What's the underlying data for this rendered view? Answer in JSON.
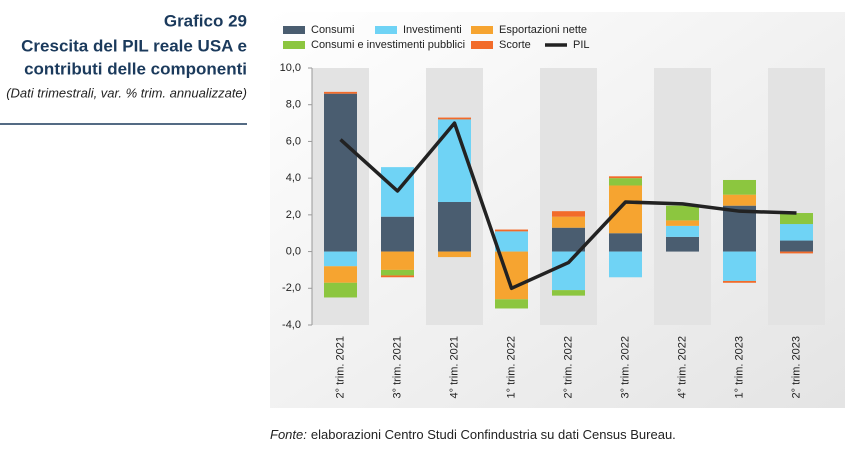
{
  "chart_data": {
    "type": "bar",
    "stacked": true,
    "title_label": "Grafico 29",
    "title": [
      "Crescita del PIL reale USA e",
      "contributi delle componenti"
    ],
    "subtitle": "(Dati trimestrali, var. % trim. annualizzate)",
    "source": {
      "label": "Fonte:",
      "text": "elaborazioni Centro Studi Confindustria su dati Census Bureau."
    },
    "categories": [
      "2° trim. 2021",
      "3° trim. 2021",
      "4° trim. 2021",
      "1° trim. 2022",
      "2° trim. 2022",
      "3° trim. 2022",
      "4° trim. 2022",
      "1° trim. 2023",
      "2° trim. 2023"
    ],
    "series": [
      {
        "name": "Consumi",
        "color": "#4a5d70",
        "values": [
          8.6,
          1.9,
          2.7,
          0,
          1.3,
          1.0,
          0.8,
          2.5,
          0.6
        ]
      },
      {
        "name": "Investimenti",
        "color": "#6fd3f5",
        "values": [
          -0.8,
          2.7,
          4.5,
          1.1,
          -2.1,
          -1.4,
          0.6,
          -1.6,
          0.9
        ]
      },
      {
        "name": "Esportazioni nette",
        "color": "#f6a430",
        "values": [
          -0.9,
          -1.0,
          -0.3,
          -2.6,
          0.6,
          2.6,
          0.3,
          0.6,
          0
        ]
      },
      {
        "name": "Consumi e investimenti pubblici",
        "color": "#8cc63f",
        "values": [
          -0.8,
          -0.3,
          0,
          -0.5,
          -0.3,
          0.4,
          0.8,
          0.8,
          0.6
        ]
      },
      {
        "name": "Scorte",
        "color": "#f26b2a",
        "values": [
          0.1,
          -0.1,
          0.1,
          0.1,
          0.3,
          0.1,
          0,
          -0.1,
          -0.1
        ]
      },
      {
        "name": "PIL",
        "color": "#222222",
        "type": "line",
        "values": [
          6.1,
          3.3,
          7.0,
          -2.0,
          -0.6,
          2.7,
          2.6,
          2.2,
          2.1
        ]
      }
    ],
    "ylim": [
      -4,
      10
    ],
    "yticks": [
      {
        "value": -4,
        "label": "-4,0"
      },
      {
        "value": -2,
        "label": "-2,0"
      },
      {
        "value": 0,
        "label": "0,0"
      },
      {
        "value": 2,
        "label": "2,0"
      },
      {
        "value": 4,
        "label": "4,0"
      },
      {
        "value": 6,
        "label": "6,0"
      },
      {
        "value": 8,
        "label": "8,0"
      },
      {
        "value": 10,
        "label": "10,0"
      }
    ]
  }
}
